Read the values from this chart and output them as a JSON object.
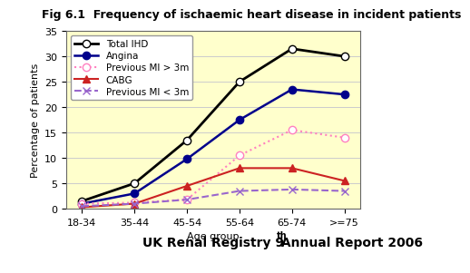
{
  "title": "Fig 6.1  Frequency of ischaemic heart disease in incident patients",
  "xlabel": "Age group",
  "ylabel": "Percentage of patients",
  "categories": [
    "18-34",
    "35-44",
    "45-54",
    "55-64",
    "65-74",
    ">=75"
  ],
  "series": [
    {
      "name": "Total IHD",
      "values": [
        1.5,
        5.0,
        13.5,
        25.0,
        31.5,
        30.0
      ],
      "color": "#000000",
      "linestyle": "-",
      "marker": "o",
      "markerfacecolor": "white",
      "markeredgecolor": "#000000",
      "linewidth": 2.0,
      "markersize": 6
    },
    {
      "name": "Angina",
      "values": [
        1.0,
        3.0,
        9.8,
        17.5,
        23.5,
        22.5
      ],
      "color": "#00008B",
      "linestyle": "-",
      "marker": "o",
      "markerfacecolor": "#00008B",
      "markeredgecolor": "#00008B",
      "linewidth": 1.8,
      "markersize": 6
    },
    {
      "name": "Previous MI > 3m",
      "values": [
        1.0,
        1.2,
        1.8,
        10.5,
        15.5,
        14.0
      ],
      "color": "#FF80C0",
      "linestyle": ":",
      "marker": "o",
      "markerfacecolor": "white",
      "markeredgecolor": "#FF80C0",
      "linewidth": 1.5,
      "markersize": 6
    },
    {
      "name": "CABG",
      "values": [
        0.3,
        1.0,
        4.5,
        8.0,
        8.0,
        5.5
      ],
      "color": "#CC2222",
      "linestyle": "-",
      "marker": "^",
      "markerfacecolor": "#CC2222",
      "markeredgecolor": "#CC2222",
      "linewidth": 1.5,
      "markersize": 6
    },
    {
      "name": "Previous MI < 3m",
      "values": [
        0.5,
        1.0,
        1.8,
        3.5,
        3.8,
        3.5
      ],
      "color": "#9966CC",
      "linestyle": "--",
      "marker": "x",
      "markerfacecolor": "#9966CC",
      "markeredgecolor": "#9966CC",
      "linewidth": 1.5,
      "markersize": 6
    }
  ],
  "ylim": [
    0,
    35
  ],
  "yticks": [
    0,
    5,
    10,
    15,
    20,
    25,
    30,
    35
  ],
  "plot_bg_color": "#FFFFCC",
  "fig_bg_color": "#FFFFFF",
  "title_fontsize": 9,
  "axis_label_fontsize": 8,
  "tick_fontsize": 8,
  "legend_fontsize": 7.5,
  "footer_text": "UK Renal Registry 9",
  "footer_super": "th",
  "footer_after": " Annual Report 2006",
  "footer_fontsize": 10
}
